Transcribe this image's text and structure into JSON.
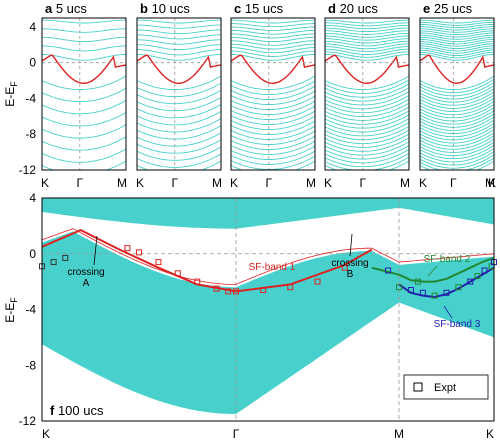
{
  "chart_data": [
    {
      "type": "line",
      "panel": "a",
      "title": "5 ucs",
      "ylabel": "E-E_F",
      "ylim": [
        -12,
        5
      ],
      "yticks": [
        4,
        0,
        -4,
        -8,
        -12
      ],
      "xticks": [
        "K",
        "Γ",
        "M"
      ],
      "grid": "dashed lines at 0 and Γ",
      "series": [
        {
          "id": "slab-bands",
          "values_min": [
            -12,
            -10.8,
            -12
          ],
          "values_max": [
            4.5,
            4.5,
            4.5
          ]
        },
        {
          "id": "surface-band",
          "x": [
            0,
            0.1,
            0.2,
            0.35,
            0.5,
            0.65,
            0.8,
            1.0
          ],
          "y": [
            0.8,
            1.2,
            -0.2,
            -1.6,
            -2.2,
            -1.6,
            -0.6,
            -0.3
          ]
        }
      ]
    },
    {
      "type": "line",
      "panel": "b",
      "title": "10 ucs",
      "ylim": [
        -12,
        5
      ],
      "xticks": [
        "K",
        "Γ",
        "M"
      ]
    },
    {
      "type": "line",
      "panel": "c",
      "title": "15 ucs",
      "ylim": [
        -12,
        5
      ],
      "xticks": [
        "K",
        "Γ",
        "M"
      ]
    },
    {
      "type": "line",
      "panel": "d",
      "title": "20 ucs",
      "ylim": [
        -12,
        5
      ],
      "xticks": [
        "K",
        "Γ",
        "M"
      ]
    },
    {
      "type": "line",
      "panel": "e",
      "title": "25 ucs",
      "ylim": [
        -12,
        5
      ],
      "xticks": [
        "K",
        "Γ",
        "M",
        "K"
      ]
    },
    {
      "type": "line",
      "panel": "f",
      "title": "100 ucs",
      "ylabel": "E-E_F",
      "ylim": [
        -12,
        4
      ],
      "yticks": [
        4,
        0,
        -4,
        -8,
        -12
      ],
      "xticks": [
        "K",
        "Γ",
        "M",
        "K"
      ],
      "series": [
        {
          "name": "SF-band 1",
          "color": "#dd2222",
          "x": [
            0.0,
            0.1,
            0.2,
            0.3,
            0.4,
            0.5,
            0.6,
            0.7,
            0.75
          ],
          "y": [
            0.5,
            1.7,
            0.3,
            -1.0,
            -2.2,
            -2.7,
            -2.2,
            -0.8,
            0.3
          ]
        },
        {
          "name": "SF-band 2",
          "color": "#228833",
          "x": [
            0.75,
            0.8,
            0.85,
            0.9,
            0.95,
            1.0,
            1.05,
            1.1,
            1.15,
            1.2
          ],
          "y": [
            -1.0,
            -1.5,
            -1.9,
            -2.0,
            -2.0,
            -1.8,
            -1.4,
            -1.0,
            -0.6,
            -0.3
          ]
        },
        {
          "name": "SF-band 3",
          "color": "#2222aa",
          "x": [
            0.8,
            0.85,
            0.9,
            0.95,
            1.0,
            1.05,
            1.1,
            1.15,
            1.2
          ],
          "y": [
            -2.2,
            -2.8,
            -3.0,
            -3.1,
            -2.9,
            -2.5,
            -2.0,
            -1.5,
            -1.0
          ]
        },
        {
          "name": "Expt",
          "marker": "open-square",
          "x": [
            0.0,
            0.03,
            0.06,
            0.22,
            0.25,
            0.3,
            0.35,
            0.4,
            0.45,
            0.48,
            0.5,
            0.55,
            0.6,
            0.65,
            0.7,
            0.78,
            0.8,
            0.85,
            0.88,
            0.9,
            0.95,
            1.0,
            1.05,
            1.1,
            1.13,
            1.16,
            1.19,
            1.2
          ],
          "y": [
            -0.9,
            -0.6,
            -0.3,
            0.4,
            0.1,
            -0.6,
            -1.4,
            -2.0,
            -2.5,
            -2.7,
            -2.7,
            -2.6,
            -2.4,
            -2.0,
            -1.0,
            -1.2,
            -2.4,
            -2.6,
            -2.0,
            -2.8,
            -3.0,
            -2.8,
            -2.4,
            -2.0,
            -1.6,
            -1.2,
            -0.9,
            -0.6
          ]
        }
      ]
    }
  ],
  "panels_top": [
    {
      "letter": "a",
      "label": "5 ucs"
    },
    {
      "letter": "b",
      "label": "10 ucs"
    },
    {
      "letter": "c",
      "label": "15 ucs"
    },
    {
      "letter": "d",
      "label": "20 ucs"
    },
    {
      "letter": "e",
      "label": "25 ucs"
    }
  ],
  "ylabel": "E-E",
  "ylabel_sub": "F",
  "top_yticks": [
    "4",
    "0",
    "-4",
    "-8",
    "-12"
  ],
  "bottom_yticks": [
    "4",
    "0",
    "-4",
    "-8",
    "-12"
  ],
  "top_xticks": [
    "K",
    "Γ",
    "M"
  ],
  "bottom_xticks": [
    "K",
    "Γ",
    "M",
    "K"
  ],
  "annotations": {
    "crossing_a": "crossing\nA",
    "crossing_b": "crossing\nB",
    "sf1": "SF-band 1",
    "sf2": "SF-band 2",
    "sf3": "SF-band 3"
  },
  "legend": {
    "label": "Expt"
  },
  "panel_f_letter": "f",
  "panel_f_label": "100 ucs",
  "colors": {
    "slab": "#48d1cc",
    "red": "#dd2222",
    "green": "#228833",
    "blue": "#2222aa",
    "grid": "#999999"
  }
}
